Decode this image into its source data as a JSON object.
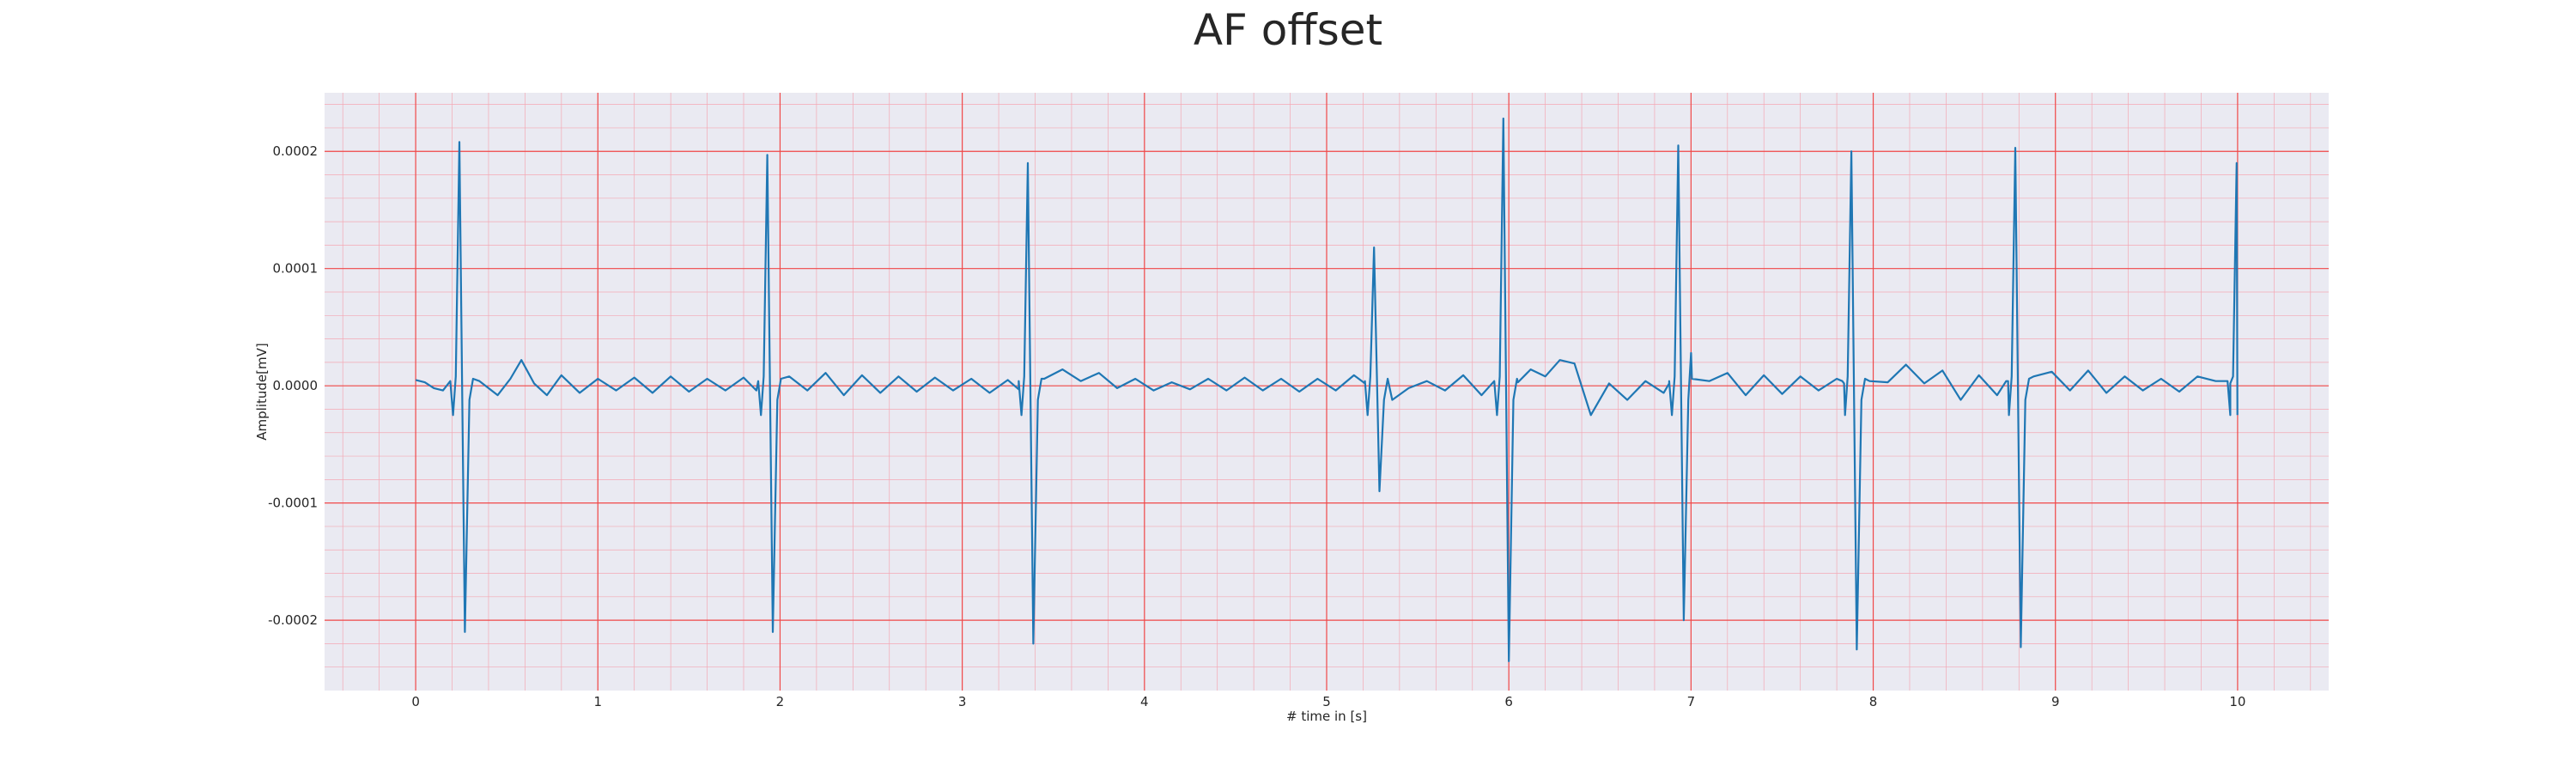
{
  "chart_data": {
    "type": "line",
    "title": "AF offset",
    "xlabel": "# time in [s]",
    "ylabel": "Amplitude[mV]",
    "xlim": [
      -0.5,
      10.5
    ],
    "ylim": [
      -0.00026,
      0.00025
    ],
    "x_ticks": [
      0,
      1,
      2,
      3,
      4,
      5,
      6,
      7,
      8,
      9,
      10
    ],
    "x_tick_labels": [
      "0",
      "1",
      "2",
      "3",
      "4",
      "5",
      "6",
      "7",
      "8",
      "9",
      "10"
    ],
    "y_ticks": [
      0.0002,
      0.0001,
      0.0,
      -0.0001,
      -0.0002
    ],
    "y_tick_labels": [
      "0.0002",
      "0.0001",
      "0.0000",
      "-0.0001",
      "-0.0002"
    ],
    "grid": true,
    "colors": {
      "background": "#eaeaf2",
      "major_grid": "#f04848",
      "minor_grid": "#f4a8b4",
      "line": "#1f77b4"
    },
    "beats": [
      {
        "t": 0.24,
        "peak": 0.000208,
        "trough": -0.00021
      },
      {
        "t": 1.93,
        "peak": 0.000197,
        "trough": -0.00021
      },
      {
        "t": 3.36,
        "peak": 0.00019,
        "trough": -0.00022
      },
      {
        "t": 5.26,
        "peak": 0.000118,
        "trough": -9e-05
      },
      {
        "t": 5.97,
        "peak": 0.000228,
        "trough": -0.000235
      },
      {
        "t": 6.93,
        "peak": 0.000205,
        "trough": -0.0002
      },
      {
        "t": 7.88,
        "peak": 0.0002,
        "trough": -0.000225
      },
      {
        "t": 8.78,
        "peak": 0.000203,
        "trough": -0.000223
      },
      {
        "t": 9.995,
        "peak": 0.00019,
        "trough": -2.5e-05
      }
    ],
    "baseline": [
      [
        0.0,
        5e-06
      ],
      [
        0.05,
        3e-06
      ],
      [
        0.1,
        -2e-06
      ],
      [
        0.15,
        -4e-06
      ],
      [
        0.35,
        4e-06
      ],
      [
        0.45,
        -8e-06
      ],
      [
        0.52,
        6e-06
      ],
      [
        0.58,
        2.2e-05
      ],
      [
        0.65,
        2e-06
      ],
      [
        0.72,
        -8e-06
      ],
      [
        0.8,
        9e-06
      ],
      [
        0.9,
        -6e-06
      ],
      [
        1.0,
        6e-06
      ],
      [
        1.1,
        -4e-06
      ],
      [
        1.2,
        7e-06
      ],
      [
        1.3,
        -6e-06
      ],
      [
        1.4,
        8e-06
      ],
      [
        1.5,
        -5e-06
      ],
      [
        1.6,
        6e-06
      ],
      [
        1.7,
        -4e-06
      ],
      [
        1.8,
        7e-06
      ],
      [
        1.87,
        -4e-06
      ],
      [
        2.05,
        8e-06
      ],
      [
        2.15,
        -4e-06
      ],
      [
        2.25,
        1.1e-05
      ],
      [
        2.35,
        -8e-06
      ],
      [
        2.45,
        9e-06
      ],
      [
        2.55,
        -6e-06
      ],
      [
        2.65,
        8e-06
      ],
      [
        2.75,
        -5e-06
      ],
      [
        2.85,
        7e-06
      ],
      [
        2.95,
        -4e-06
      ],
      [
        3.05,
        6e-06
      ],
      [
        3.15,
        -6e-06
      ],
      [
        3.25,
        5e-06
      ],
      [
        3.31,
        -3e-06
      ],
      [
        3.45,
        6e-06
      ],
      [
        3.55,
        1.4e-05
      ],
      [
        3.65,
        4e-06
      ],
      [
        3.75,
        1.1e-05
      ],
      [
        3.85,
        -2e-06
      ],
      [
        3.95,
        6e-06
      ],
      [
        4.05,
        -4e-06
      ],
      [
        4.15,
        3e-06
      ],
      [
        4.25,
        -3e-06
      ],
      [
        4.35,
        6e-06
      ],
      [
        4.45,
        -4e-06
      ],
      [
        4.55,
        7e-06
      ],
      [
        4.65,
        -4e-06
      ],
      [
        4.75,
        6e-06
      ],
      [
        4.85,
        -5e-06
      ],
      [
        4.95,
        6e-06
      ],
      [
        5.05,
        -4e-06
      ],
      [
        5.15,
        9e-06
      ],
      [
        5.21,
        2e-06
      ],
      [
        5.36,
        -1.2e-05
      ],
      [
        5.45,
        -2e-06
      ],
      [
        5.55,
        4e-06
      ],
      [
        5.65,
        -4e-06
      ],
      [
        5.75,
        9e-06
      ],
      [
        5.85,
        -8e-06
      ],
      [
        5.92,
        4e-06
      ],
      [
        6.05,
        3e-06
      ],
      [
        6.12,
        1.4e-05
      ],
      [
        6.2,
        8e-06
      ],
      [
        6.28,
        2.2e-05
      ],
      [
        6.36,
        1.9e-05
      ],
      [
        6.45,
        -2.5e-05
      ],
      [
        6.55,
        2e-06
      ],
      [
        6.65,
        -1.2e-05
      ],
      [
        6.75,
        4e-06
      ],
      [
        6.85,
        -6e-06
      ],
      [
        6.88,
        2e-06
      ],
      [
        7.0,
        2.8e-05
      ],
      [
        7.1,
        4e-06
      ],
      [
        7.2,
        1.1e-05
      ],
      [
        7.3,
        -8e-06
      ],
      [
        7.4,
        9e-06
      ],
      [
        7.5,
        -7e-06
      ],
      [
        7.6,
        8e-06
      ],
      [
        7.7,
        -4e-06
      ],
      [
        7.8,
        6e-06
      ],
      [
        7.84,
        2e-06
      ],
      [
        7.98,
        4e-06
      ],
      [
        8.08,
        3e-06
      ],
      [
        8.18,
        1.8e-05
      ],
      [
        8.28,
        2e-06
      ],
      [
        8.38,
        1.3e-05
      ],
      [
        8.48,
        -1.2e-05
      ],
      [
        8.58,
        9e-06
      ],
      [
        8.68,
        -8e-06
      ],
      [
        8.74,
        4e-06
      ],
      [
        8.88,
        8e-06
      ],
      [
        8.98,
        1.2e-05
      ],
      [
        9.08,
        -4e-06
      ],
      [
        9.18,
        1.3e-05
      ],
      [
        9.28,
        -6e-06
      ],
      [
        9.38,
        8e-06
      ],
      [
        9.48,
        -4e-06
      ],
      [
        9.58,
        6e-06
      ],
      [
        9.68,
        -5e-06
      ],
      [
        9.78,
        8e-06
      ],
      [
        9.88,
        4e-06
      ],
      [
        9.96,
        2e-06
      ]
    ]
  }
}
